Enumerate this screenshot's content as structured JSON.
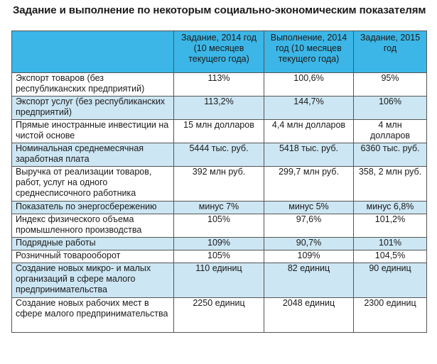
{
  "title": "Задание и выполнение по некоторым социально-экономическим показателям",
  "colors": {
    "header": "#3cb6e6",
    "shaded_row": "#cde6f3",
    "border": "#555555"
  },
  "table": {
    "headers": [
      "",
      "Задание, 2014 год (10 месяцев текущего года)",
      "Выполнение, 2014 год (10 месяцев текущего года)",
      "Задание, 2015 год"
    ],
    "rows": [
      {
        "label": "Экспорт товаров (без республиканских предприятий)",
        "plan2014": "113%",
        "fact2014": "100,6%",
        "plan2015": "95%"
      },
      {
        "label": "Экспорт услуг (без республиканских предприятий)",
        "plan2014": "113,2%",
        "fact2014": "144,7%",
        "plan2015": "106%"
      },
      {
        "label": "Прямые иностранные инвестиции на чистой основе",
        "plan2014": "15 млн долларов",
        "fact2014": "4,4 млн долларов",
        "plan2015": "4 млн долларов"
      },
      {
        "label": "Номинальная среднемесячная заработная плата",
        "plan2014": "5444 тыс. руб.",
        "fact2014": "5418 тыс. руб.",
        "plan2015": "6360 тыс. руб."
      },
      {
        "label": "Выручка от реализации товаров, работ, услуг на одного среднесписочного работника",
        "plan2014": "392 млн руб.",
        "fact2014": "299,7 млн руб.",
        "plan2015": "358, 2 млн руб."
      },
      {
        "label": "Показатель по энергосбережению",
        "plan2014": "минус 7%",
        "fact2014": "минус 5%",
        "plan2015": "минус 6,8%"
      },
      {
        "label": "Индекс физического объема промышленного производства",
        "plan2014": "105%",
        "fact2014": "97,6%",
        "plan2015": "101,2%"
      },
      {
        "label": "Подрядные работы",
        "plan2014": "109%",
        "fact2014": "90,7%",
        "plan2015": "101%"
      },
      {
        "label": "Розничный товарооборот",
        "plan2014": "105%",
        "fact2014": "109%",
        "plan2015": "104,5%"
      },
      {
        "label": "Создание новых  микро- и малых организаций в сфере малого предпринимательства",
        "plan2014": "110 единиц",
        "fact2014": "82 единиц",
        "plan2015": "90 единиц"
      },
      {
        "label": "Создание новых рабочих мест в сфере малого предпринимательства",
        "plan2014": "2250 единиц",
        "fact2014": "2048 единиц",
        "plan2015": "2300 единиц"
      }
    ]
  }
}
